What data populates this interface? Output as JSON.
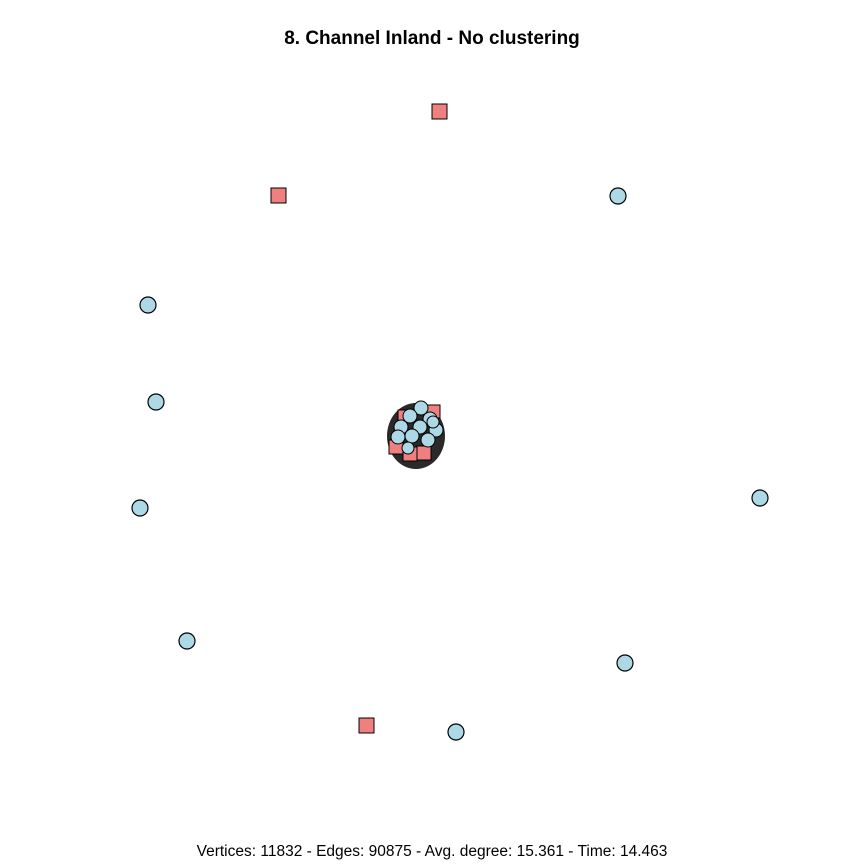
{
  "title": "8. Channel Inland - No clustering",
  "footer": "Vertices: 11832 - Edges: 90875 - Avg. degree: 15.361 - Time: 14.463",
  "legend": {
    "circle_color": "#add8e6",
    "square_color": "#f08080",
    "stroke_color": "#000000"
  }
}
